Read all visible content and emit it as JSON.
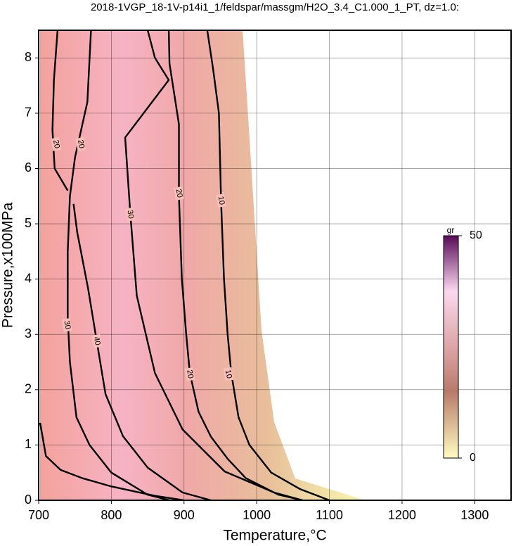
{
  "chart_data": {
    "type": "contour",
    "title": "2018-1VGP_18-1V-p14i1_1/feldspar/massgm/H2O_3.4_C1.000_1_PT, dz=1.0:",
    "xlabel": "Temperature,°C",
    "ylabel": "Pressure,x100MPa",
    "xlim": [
      700,
      1350
    ],
    "ylim": [
      0,
      8.5
    ],
    "xticks": [
      700,
      800,
      900,
      1000,
      1100,
      1200,
      1300
    ],
    "yticks": [
      0,
      1,
      2,
      3,
      4,
      5,
      6,
      7,
      8
    ],
    "grid": true,
    "color": "#000000",
    "series": [
      {
        "name": "10",
        "x": [
          932,
          940,
          948,
          951,
          955,
          960,
          965,
          975,
          990,
          1020,
          1060,
          1100
        ],
        "y": [
          8.5,
          7.8,
          7,
          5.4,
          4,
          3,
          2.3,
          1.5,
          1,
          0.5,
          0.2,
          0
        ]
      },
      {
        "name": "20",
        "x": [
          879,
          880,
          893,
          893,
          897,
          903,
          908,
          920,
          937,
          960,
          985,
          1030,
          1063
        ],
        "y": [
          8.5,
          7.9,
          6.8,
          5.5,
          4,
          3,
          2.3,
          1.6,
          1.15,
          0.75,
          0.4,
          0.1,
          0
        ]
      },
      {
        "name": "30",
        "x": [
          850,
          860,
          879,
          819,
          826,
          835,
          860,
          898,
          956,
          1024,
          1063
        ],
        "y": [
          8.5,
          8.0,
          7.6,
          6.56,
          5.2,
          3.7,
          2.3,
          1.28,
          0.52,
          0.14,
          0
        ]
      },
      {
        "name": "40",
        "x": [
          748,
          753,
          768,
          780,
          792,
          816,
          850,
          898,
          937
        ],
        "y": [
          5.36,
          4.85,
          3.83,
          2.87,
          1.92,
          1.16,
          0.59,
          0.14,
          0
        ]
      },
      {
        "name": "20",
        "x": [
          726,
          721,
          719,
          722,
          740
        ],
        "y": [
          8.5,
          7.6,
          6.7,
          6.0,
          5.6
        ]
      },
      {
        "name": "30",
        "x": [
          772,
          767,
          750,
          743,
          740,
          740,
          743,
          752,
          770,
          800,
          850,
          880
        ],
        "y": [
          8.5,
          7.2,
          6.2,
          5.5,
          4.5,
          3.3,
          2.5,
          1.5,
          1.0,
          0.5,
          0.1,
          0
        ]
      },
      {
        "x": [
          702,
          710,
          730,
          760,
          800,
          860,
          900
        ],
        "y": [
          1.4,
          0.8,
          0.55,
          0.4,
          0.25,
          0.08,
          0
        ]
      }
    ],
    "contour_labels": [
      {
        "text": "20",
        "x": 724,
        "y": 6.44
      },
      {
        "text": "20",
        "x": 758,
        "y": 6.44
      },
      {
        "text": "30",
        "x": 826,
        "y": 5.17
      },
      {
        "text": "20",
        "x": 893,
        "y": 5.55
      },
      {
        "text": "10",
        "x": 951,
        "y": 5.42
      },
      {
        "text": "30",
        "x": 739,
        "y": 3.17
      },
      {
        "text": "40",
        "x": 780,
        "y": 2.88
      },
      {
        "text": "20",
        "x": 908,
        "y": 2.28
      },
      {
        "text": "10",
        "x": 961,
        "y": 2.28
      }
    ],
    "colorbar": {
      "label": "gr",
      "lim": [
        0,
        50
      ],
      "ticks": [
        0,
        50
      ]
    }
  }
}
